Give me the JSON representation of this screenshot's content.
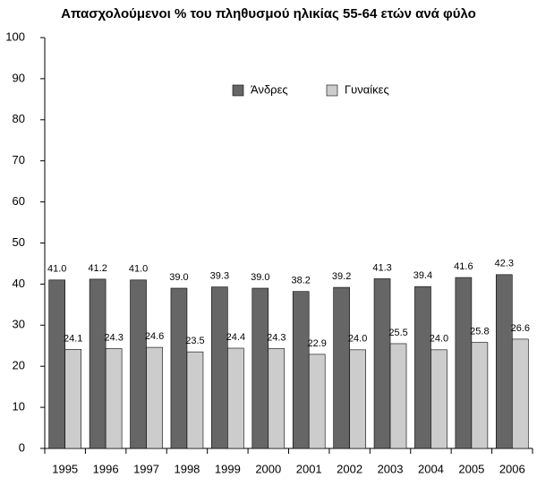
{
  "chart_data": {
    "type": "bar",
    "title": "Απασχολούμενοι % του πληθυσμού ηλικίας 55-64 ετών ανά φύλο",
    "categories": [
      "1995",
      "1996",
      "1997",
      "1998",
      "1999",
      "2000",
      "2001",
      "2002",
      "2003",
      "2004",
      "2005",
      "2006"
    ],
    "series": [
      {
        "name": "Άνδρες",
        "color": "#666666",
        "values": [
          41.0,
          41.2,
          41.0,
          39.0,
          39.3,
          39.0,
          38.2,
          39.2,
          41.3,
          39.4,
          41.6,
          42.3
        ],
        "value_labels": [
          "41.0",
          "41.2",
          "41.0",
          "39.0",
          "39.3",
          "39.0",
          "38.2",
          "39.2",
          "41.3",
          "39.4",
          "41.6",
          "42.3"
        ]
      },
      {
        "name": "Γυναίκες",
        "color": "#cccccc",
        "values": [
          24.1,
          24.3,
          24.6,
          23.5,
          24.4,
          24.3,
          22.9,
          24.0,
          25.5,
          24.0,
          25.8,
          26.6
        ],
        "value_labels": [
          "24.1",
          "24.3",
          "24.6",
          "23.5",
          "24.4",
          "24.3",
          "22.9",
          "24.0",
          "25.5",
          "24.0",
          "25.8",
          "26.6"
        ]
      }
    ],
    "ylim": [
      0,
      100
    ],
    "yticks": [
      0,
      10,
      20,
      30,
      40,
      50,
      60,
      70,
      80,
      90,
      100
    ],
    "grid": false,
    "legend": "top"
  }
}
